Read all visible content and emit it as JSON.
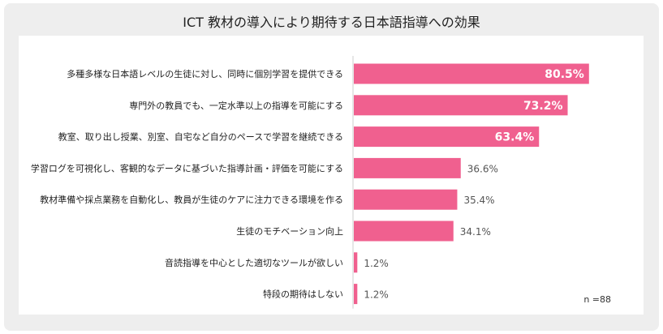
{
  "title": "ICT 教材の導入により期待する日本語指導への効果",
  "note": "n =88",
  "colors": {
    "bar": "#f0608f",
    "axis": "#cccccc",
    "label_inside": "#ffffff",
    "label_outside": "#555555",
    "category_text": "#222222"
  },
  "chart_data": {
    "type": "bar",
    "orientation": "horizontal",
    "categories": [
      "多種多様な日本語レベルの生徒に対し、同時に個別学習を提供できる",
      "専門外の教員でも、一定水準以上の指導を可能にする",
      "教室、取り出し授業、別室、自宅など自分のペースで学習を継続できる",
      "学習ログを可視化し、客観的なデータに基づいた指導計画・評価を可能にする",
      "教材準備や採点業務を自動化し、教員が生徒のケアに注力できる環境を作る",
      "生徒のモチベーション向上",
      "音読指導を中心とした適切なツールが欲しい",
      "特段の期待はしない"
    ],
    "values": [
      80.5,
      73.2,
      63.4,
      36.6,
      35.4,
      34.1,
      1.2,
      1.2
    ],
    "value_labels": [
      "80.5%",
      "73.2%",
      "63.4%",
      "36.6%",
      "35.4%",
      "34.1%",
      "1.2%",
      "1.2%"
    ],
    "xlim": [
      0,
      100
    ],
    "grid": false,
    "legend": "none"
  }
}
